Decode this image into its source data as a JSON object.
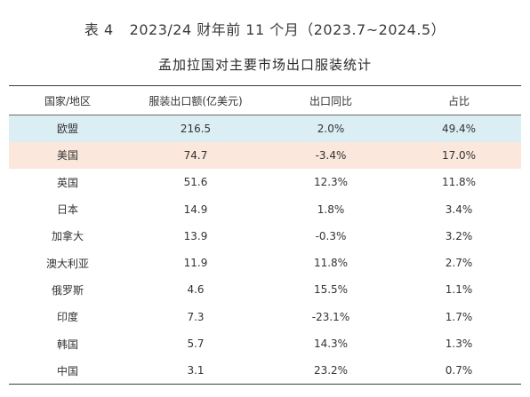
{
  "table_number": "表 4",
  "table_title": "2023/24 财年前 11 个月（2023.7~2024.5）",
  "subtitle": "孟加拉国对主要市场出口服装统计",
  "headers": [
    "国家/地区",
    "服装出口额(亿美元)",
    "出口同比",
    "占比"
  ],
  "rows": [
    {
      "country": "欧盟",
      "value": "216.5",
      "yoy": "2.0%",
      "share": "49.4%"
    },
    {
      "country": "美国",
      "value": "74.7",
      "yoy": "-3.4%",
      "share": "17.0%"
    },
    {
      "country": "英国",
      "value": "51.6",
      "yoy": "12.3%",
      "share": "11.8%"
    },
    {
      "country": "日本",
      "value": "14.9",
      "yoy": "1.8%",
      "share": "3.4%"
    },
    {
      "country": "加拿大",
      "value": "13.9",
      "yoy": "-0.3%",
      "share": "3.2%"
    },
    {
      "country": "澳大利亚",
      "value": "11.9",
      "yoy": "11.8%",
      "share": "2.7%"
    },
    {
      "country": "俄罗斯",
      "value": "4.6",
      "yoy": "15.5%",
      "share": "1.1%"
    },
    {
      "country": "印度",
      "value": "7.3",
      "yoy": "-23.1%",
      "share": "1.7%"
    },
    {
      "country": "韩国",
      "value": "5.7",
      "yoy": "14.3%",
      "share": "1.3%"
    },
    {
      "country": "中国",
      "value": "3.1",
      "yoy": "23.2%",
      "share": "0.7%"
    }
  ],
  "colors": {
    "highlight_eu": "#dbeef4",
    "highlight_us": "#fbe7dc",
    "rule": "#3c3c3c"
  }
}
